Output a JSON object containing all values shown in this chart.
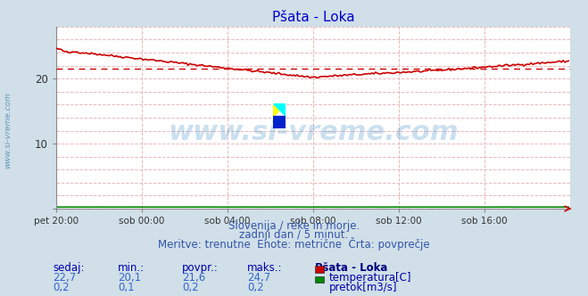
{
  "title": "Pšata - Loka",
  "title_color": "#0000cc",
  "bg_color": "#d0dfe8",
  "plot_bg_color": "#ffffff",
  "grid_color": "#e8b8b8",
  "xlabel_ticks": [
    "pet 20:00",
    "sob 00:00",
    "sob 04:00",
    "sob 08:00",
    "sob 12:00",
    "sob 16:00"
  ],
  "ylim": [
    0,
    28
  ],
  "xlim": [
    0,
    288
  ],
  "tick_positions": [
    0,
    48,
    96,
    144,
    192,
    240
  ],
  "temp_color": "#cc0000",
  "pretok_color": "#008800",
  "avg_value": 21.6,
  "watermark_text": "www.si-vreme.com",
  "watermark_color": "#5599cc",
  "watermark_alpha": 0.3,
  "watermark_fontsize": 22,
  "side_text": "www.si-vreme.com",
  "side_color": "#6699bb",
  "sub_text1": "Slovenija / reke in morje.",
  "sub_text2": "zadnji dan / 5 minut.",
  "sub_text3": "Meritve: trenutne  Enote: metrične  Črta: povprečje",
  "sub_color": "#3355aa",
  "sub_fontsize": 8.5,
  "legend_title": "Pšata - Loka",
  "legend_title_color": "#000080",
  "label_sedaj": "sedaj:",
  "label_min": "min.:",
  "label_povpr": "povpr.:",
  "label_maks": "maks.:",
  "val_sedaj_temp": "22,7",
  "val_min_temp": "20,1",
  "val_povpr_temp": "21,6",
  "val_maks_temp": "24,7",
  "val_sedaj_pretok": "0,2",
  "val_min_pretok": "0,1",
  "val_povpr_pretok": "0,2",
  "val_maks_pretok": "0,2",
  "label_temp": "temperatura[C]",
  "label_pretok": "pretok[m3/s]",
  "label_color": "#0000aa",
  "value_color": "#3366cc",
  "stats_fontsize": 8.5
}
